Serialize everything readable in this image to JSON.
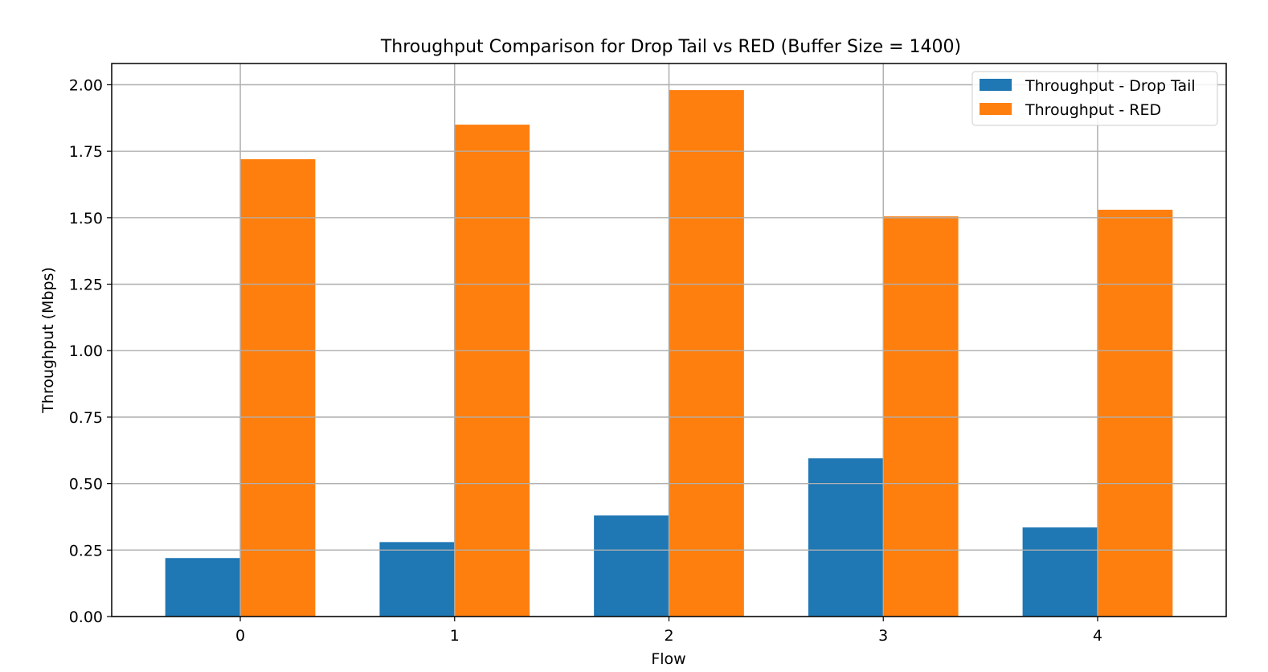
{
  "chart_data": {
    "type": "bar",
    "title": "Throughput Comparison for Drop Tail vs RED (Buffer Size = 1400)",
    "xlabel": "Flow",
    "ylabel": "Throughput (Mbps)",
    "categories": [
      "0",
      "1",
      "2",
      "3",
      "4"
    ],
    "series": [
      {
        "name": "Throughput - Drop Tail",
        "color": "#1f77b4",
        "values": [
          0.22,
          0.28,
          0.38,
          0.595,
          0.335
        ]
      },
      {
        "name": "Throughput - RED",
        "color": "#ff7f0e",
        "values": [
          1.72,
          1.85,
          1.98,
          1.505,
          1.53
        ]
      }
    ],
    "ylim": [
      0,
      2.08
    ],
    "yticks": [
      "0.00",
      "0.25",
      "0.50",
      "0.75",
      "1.00",
      "1.25",
      "1.50",
      "1.75",
      "2.00"
    ],
    "grid": true,
    "legend_position": "upper right"
  }
}
